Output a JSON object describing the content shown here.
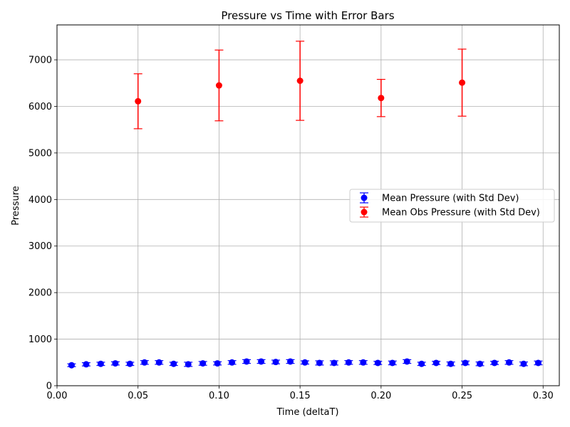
{
  "chart_data": {
    "type": "scatter",
    "title": "Pressure vs Time with Error Bars",
    "xlabel": "Time (deltaT)",
    "ylabel": "Pressure",
    "xlim": [
      0.0,
      0.31
    ],
    "ylim": [
      0,
      7750
    ],
    "xticks": [
      0.0,
      0.05,
      0.1,
      0.15,
      0.2,
      0.25,
      0.3
    ],
    "xtick_labels": [
      "0.00",
      "0.05",
      "0.10",
      "0.15",
      "0.20",
      "0.25",
      "0.30"
    ],
    "yticks": [
      0,
      1000,
      2000,
      3000,
      4000,
      5000,
      6000,
      7000
    ],
    "ytick_labels": [
      "0",
      "1000",
      "2000",
      "3000",
      "4000",
      "5000",
      "6000",
      "7000"
    ],
    "grid": true,
    "legend_position": "center-right",
    "series": [
      {
        "name": "Mean Pressure (with Std Dev)",
        "color": "#0000ff",
        "marker": "circle",
        "x": [
          0.009,
          0.018,
          0.027,
          0.036,
          0.045,
          0.054,
          0.063,
          0.072,
          0.081,
          0.09,
          0.099,
          0.108,
          0.117,
          0.126,
          0.135,
          0.144,
          0.153,
          0.162,
          0.171,
          0.18,
          0.189,
          0.198,
          0.207,
          0.216,
          0.225,
          0.234,
          0.243,
          0.252,
          0.261,
          0.27,
          0.279,
          0.288,
          0.297
        ],
        "y": [
          440,
          460,
          470,
          480,
          470,
          500,
          500,
          470,
          460,
          480,
          480,
          500,
          520,
          520,
          510,
          520,
          500,
          490,
          490,
          500,
          500,
          490,
          490,
          520,
          470,
          490,
          470,
          490,
          470,
          490,
          500,
          470,
          490
        ],
        "err": [
          30,
          35,
          35,
          35,
          35,
          40,
          40,
          35,
          45,
          40,
          35,
          40,
          40,
          40,
          40,
          40,
          35,
          45,
          45,
          40,
          40,
          35,
          40,
          40,
          35,
          35,
          40,
          40,
          40,
          35,
          40,
          40,
          40
        ]
      },
      {
        "name": "Mean Obs Pressure (with Std Dev)",
        "color": "#ff0000",
        "marker": "circle",
        "x": [
          0.05,
          0.1,
          0.15,
          0.2,
          0.25
        ],
        "y": [
          6110,
          6450,
          6550,
          6180,
          6510
        ],
        "err": [
          590,
          760,
          850,
          400,
          720
        ]
      }
    ]
  }
}
